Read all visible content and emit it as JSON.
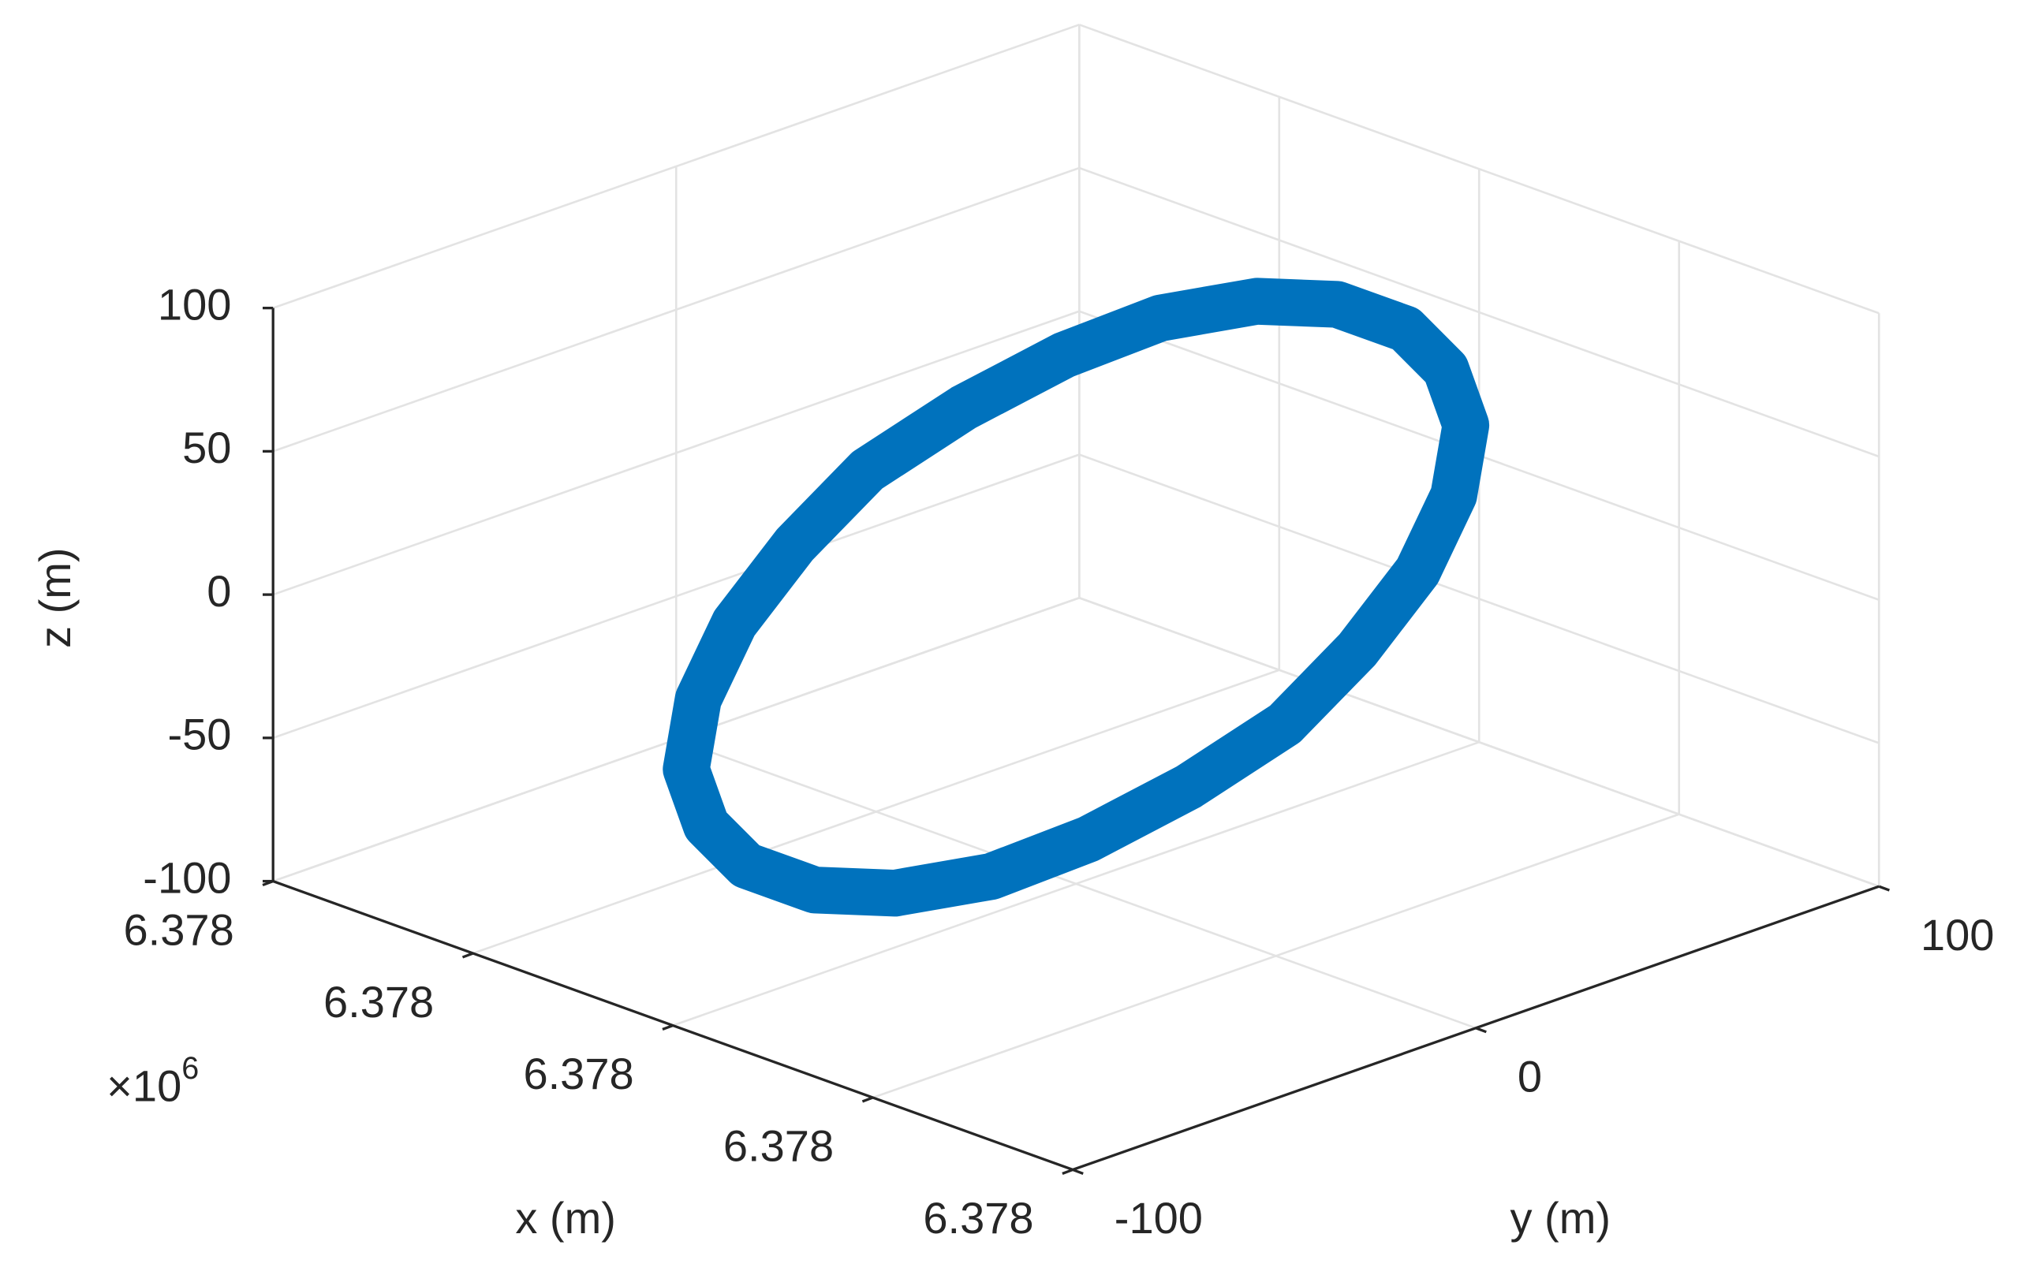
{
  "chart_data": {
    "type": "line3d",
    "xlabel": "x (m)",
    "ylabel": "y (m)",
    "zlabel": "z (m)",
    "x_exponent_base": "×10",
    "x_exponent": "6",
    "xlim": [
      6377900,
      6378100
    ],
    "xticks": [
      {
        "value": 6377900,
        "label": "6.378"
      },
      {
        "value": 6377950,
        "label": "6.378"
      },
      {
        "value": 6378000,
        "label": "6.378"
      },
      {
        "value": 6378050,
        "label": "6.378"
      },
      {
        "value": 6378100,
        "label": "6.378"
      }
    ],
    "ylim": [
      -100,
      100
    ],
    "yticks": [
      -100,
      0,
      100
    ],
    "zlim": [
      -100,
      100
    ],
    "zticks": [
      -100,
      -50,
      0,
      50,
      100
    ],
    "grid": true,
    "series": [
      {
        "color": "#0072bd",
        "x": [
          6378033,
          6378036,
          6378036,
          6378033,
          6378029,
          6378022,
          6378014,
          6378005,
          6377996,
          6377987,
          6377978,
          6377972,
          6377967,
          6377964,
          6377964,
          6377967,
          6377971,
          6377978,
          6377986,
          6377995,
          6378004,
          6378013,
          6378022,
          6378028
        ],
        "y": [
          52,
          58,
          61,
          59,
          53,
          43,
          31,
          16,
          1,
          -15,
          -30,
          -42,
          -52,
          -58,
          -61,
          -59,
          -53,
          -43,
          -31,
          -16,
          -1,
          15,
          30,
          42
        ],
        "z": [
          0,
          25,
          48,
          67,
          82,
          92,
          95,
          92,
          82,
          67,
          48,
          25,
          0,
          -25,
          -48,
          -67,
          -82,
          -92,
          -95,
          -92,
          -82,
          -67,
          -48,
          -25
        ]
      }
    ]
  }
}
